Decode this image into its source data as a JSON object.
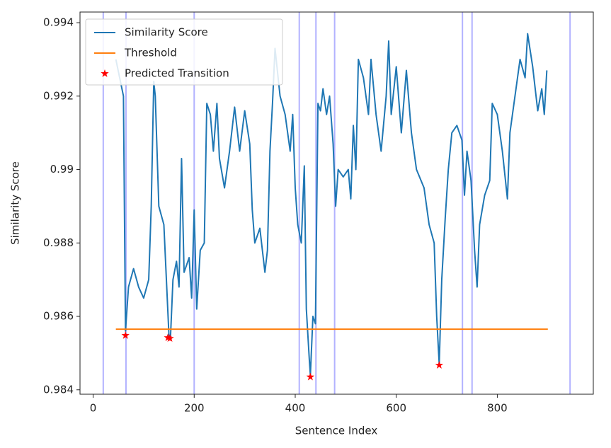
{
  "chart_data": {
    "type": "line",
    "xlabel": "Sentence Index",
    "ylabel": "Similarity Score",
    "xlim": [
      -26,
      990
    ],
    "ylim": [
      0.98388,
      0.99429
    ],
    "xticks": [
      0,
      200,
      400,
      600,
      800
    ],
    "yticks": [
      0.984,
      0.986,
      0.988,
      0.99,
      0.992,
      0.994
    ],
    "legend": "upper left",
    "vlines": [
      20,
      65,
      200,
      408,
      441,
      478,
      731,
      750,
      944
    ],
    "vline_color": "#0000ff",
    "series": [
      {
        "name": "Similarity Score",
        "color": "#1f77b4",
        "marker": "none",
        "x": [
          45,
          60,
          64,
          70,
          80,
          90,
          100,
          110,
          115,
          120,
          123,
          130,
          140,
          145,
          150,
          153,
          158,
          165,
          170,
          175,
          180,
          190,
          195,
          200,
          205,
          212,
          220,
          225,
          232,
          238,
          245,
          250,
          260,
          270,
          280,
          290,
          300,
          310,
          315,
          320,
          330,
          340,
          345,
          350,
          355,
          360,
          370,
          380,
          390,
          395,
          400,
          405,
          412,
          418,
          422,
          428,
          430,
          435,
          440,
          445,
          450,
          455,
          462,
          468,
          475,
          480,
          485,
          495,
          505,
          510,
          515,
          520,
          525,
          535,
          545,
          550,
          560,
          570,
          580,
          585,
          590,
          600,
          610,
          620,
          630,
          640,
          655,
          665,
          675,
          680,
          685,
          690,
          697,
          703,
          710,
          720,
          730,
          735,
          740,
          748,
          755,
          760,
          765,
          775,
          785,
          790,
          800,
          810,
          820,
          825,
          835,
          845,
          855,
          860,
          870,
          880,
          888,
          893,
          898
        ],
        "values": [
          0.993,
          0.992,
          0.9856,
          0.9868,
          0.9873,
          0.9868,
          0.9865,
          0.987,
          0.989,
          0.9924,
          0.992,
          0.989,
          0.9885,
          0.987,
          0.9855,
          0.9854,
          0.987,
          0.9875,
          0.9868,
          0.9903,
          0.9872,
          0.9876,
          0.9865,
          0.9889,
          0.9862,
          0.9878,
          0.988,
          0.9918,
          0.9915,
          0.9905,
          0.9918,
          0.9903,
          0.9895,
          0.9905,
          0.9917,
          0.9905,
          0.9916,
          0.9907,
          0.9889,
          0.988,
          0.9884,
          0.9872,
          0.9878,
          0.9905,
          0.9918,
          0.9933,
          0.992,
          0.9915,
          0.9905,
          0.9915,
          0.9895,
          0.9885,
          0.988,
          0.9901,
          0.9862,
          0.9848,
          0.9844,
          0.986,
          0.9858,
          0.9918,
          0.9916,
          0.9922,
          0.9915,
          0.992,
          0.9907,
          0.989,
          0.99,
          0.9898,
          0.99,
          0.9892,
          0.9912,
          0.99,
          0.993,
          0.9925,
          0.9915,
          0.993,
          0.9915,
          0.9905,
          0.992,
          0.9935,
          0.9915,
          0.9928,
          0.991,
          0.9927,
          0.991,
          0.99,
          0.9895,
          0.9885,
          0.988,
          0.986,
          0.9847,
          0.987,
          0.9887,
          0.99,
          0.991,
          0.9912,
          0.9908,
          0.9893,
          0.9905,
          0.9897,
          0.9878,
          0.9868,
          0.9885,
          0.9893,
          0.9897,
          0.9918,
          0.9915,
          0.9905,
          0.9892,
          0.991,
          0.992,
          0.993,
          0.9925,
          0.9937,
          0.9928,
          0.9916,
          0.9922,
          0.9915,
          0.9927
        ]
      },
      {
        "name": "Threshold",
        "color": "#ff7f0e",
        "marker": "none",
        "x": [
          45,
          900
        ],
        "values": [
          0.98565,
          0.98565
        ]
      },
      {
        "name": "Predicted Transition",
        "color": "#ff0000",
        "marker": "star",
        "x": [
          64,
          148,
          152,
          430,
          685
        ],
        "values": [
          0.98548,
          0.98542,
          0.9854,
          0.98435,
          0.98467
        ]
      }
    ]
  }
}
